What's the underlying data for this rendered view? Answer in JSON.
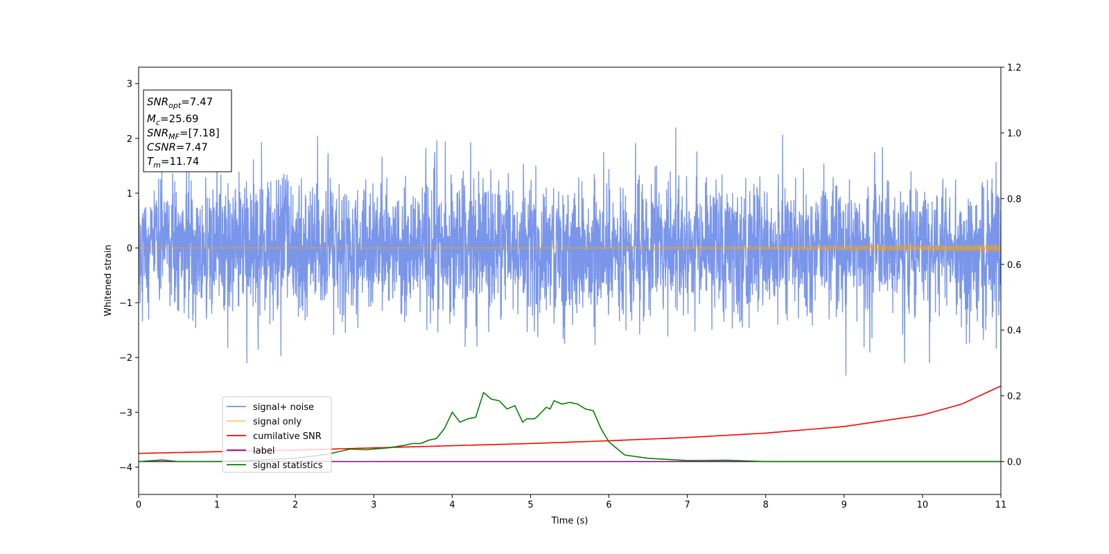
{
  "chart_data": {
    "type": "line",
    "xlabel": "Time (s)",
    "ylabel": "Whitened strain",
    "xlim": [
      0,
      11
    ],
    "ylim_left": [
      -4.5,
      3.3
    ],
    "ylim_right": [
      -0.1,
      1.2
    ],
    "x_ticks": [
      0,
      1,
      2,
      3,
      4,
      5,
      6,
      7,
      8,
      9,
      10,
      11
    ],
    "y_ticks_left": [
      -4,
      -3,
      -2,
      -1,
      0,
      1,
      2,
      3
    ],
    "y_ticks_right": [
      0.0,
      0.2,
      0.4,
      0.6,
      0.8,
      1.0,
      1.2
    ],
    "grid": false,
    "legend_position": "lower-left",
    "annotation": {
      "lines": [
        {
          "base": "SNR",
          "sub": "opt",
          "value": "=7.47"
        },
        {
          "base": "M",
          "sub": "c",
          "value": "=25.69"
        },
        {
          "base": "SNR",
          "sub": "MF",
          "value": "=[7.18]"
        },
        {
          "base": "CSNR",
          "sub": "",
          "value": "=7.47"
        },
        {
          "base": "T",
          "sub": "m",
          "value": "=11.74"
        }
      ]
    },
    "series": [
      {
        "name": "signal+ noise",
        "color": "#4169e1",
        "axis": "left",
        "kind": "noise",
        "std": 0.62,
        "peak_max": 2.2,
        "peak_min": -2.33
      },
      {
        "name": "signal only",
        "color": "#ffa500",
        "axis": "left",
        "kind": "chirp",
        "amplitude_end": 0.06
      },
      {
        "name": "cumilative SNR",
        "color": "#ff0000",
        "axis": "left",
        "x": [
          0,
          1,
          2,
          3,
          4,
          5,
          6,
          7,
          8,
          9,
          10,
          10.5,
          11
        ],
        "y": [
          -3.75,
          -3.72,
          -3.69,
          -3.65,
          -3.61,
          -3.57,
          -3.52,
          -3.46,
          -3.38,
          -3.26,
          -3.05,
          -2.85,
          -2.52
        ]
      },
      {
        "name": "label",
        "color": "#800080",
        "axis": "right",
        "x": [
          0,
          11
        ],
        "y": [
          0.0,
          0.0
        ]
      },
      {
        "name": "signal statistics",
        "color": "#008000",
        "axis": "right",
        "x": [
          0,
          0.3,
          0.5,
          1.0,
          1.5,
          2.0,
          2.4,
          2.7,
          2.9,
          3.0,
          3.2,
          3.4,
          3.5,
          3.6,
          3.7,
          3.8,
          3.9,
          4.0,
          4.1,
          4.2,
          4.3,
          4.4,
          4.5,
          4.6,
          4.7,
          4.8,
          4.9,
          4.95,
          5.05,
          5.1,
          5.2,
          5.25,
          5.3,
          5.4,
          5.5,
          5.6,
          5.7,
          5.8,
          5.9,
          6.0,
          6.2,
          6.5,
          7.0,
          7.5,
          8.0,
          9.0,
          10.0,
          11.0
        ],
        "y": [
          0.0,
          0.005,
          0.0,
          0.0,
          0.004,
          0.01,
          0.022,
          0.038,
          0.036,
          0.038,
          0.042,
          0.05,
          0.055,
          0.055,
          0.065,
          0.07,
          0.1,
          0.15,
          0.12,
          0.13,
          0.135,
          0.21,
          0.19,
          0.185,
          0.16,
          0.17,
          0.12,
          0.13,
          0.13,
          0.14,
          0.165,
          0.16,
          0.185,
          0.175,
          0.18,
          0.175,
          0.16,
          0.155,
          0.1,
          0.06,
          0.02,
          0.01,
          0.003,
          0.004,
          0.0,
          0.0,
          0.0,
          0.0
        ]
      }
    ]
  }
}
